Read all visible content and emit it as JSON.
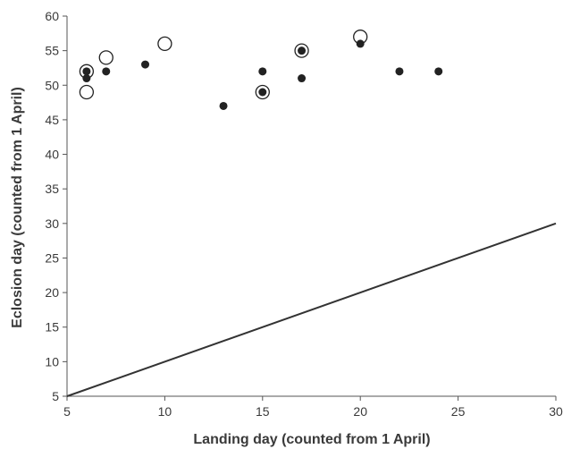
{
  "chart_data": {
    "type": "scatter",
    "xlabel": "Landing day (counted from 1 April)",
    "ylabel": "Eclosion day (counted from 1 April)",
    "xlim": [
      5,
      30
    ],
    "ylim": [
      5,
      60
    ],
    "xticks": [
      5,
      10,
      15,
      20,
      25,
      30
    ],
    "yticks": [
      5,
      10,
      15,
      20,
      25,
      30,
      35,
      40,
      45,
      50,
      55,
      60
    ],
    "grid": false,
    "legend": "none",
    "series": [
      {
        "marker": "filled-circle",
        "color": "#222222",
        "points": [
          {
            "x": 6,
            "y": 52
          },
          {
            "x": 6,
            "y": 51
          },
          {
            "x": 7,
            "y": 52
          },
          {
            "x": 9,
            "y": 53
          },
          {
            "x": 13,
            "y": 47
          },
          {
            "x": 15,
            "y": 52
          },
          {
            "x": 15,
            "y": 49
          },
          {
            "x": 17,
            "y": 55
          },
          {
            "x": 17,
            "y": 51
          },
          {
            "x": 20,
            "y": 56
          },
          {
            "x": 22,
            "y": 52
          },
          {
            "x": 24,
            "y": 52
          }
        ]
      },
      {
        "marker": "open-circle",
        "color": "#222222",
        "points": [
          {
            "x": 6,
            "y": 52
          },
          {
            "x": 6,
            "y": 49
          },
          {
            "x": 7,
            "y": 54
          },
          {
            "x": 10,
            "y": 56
          },
          {
            "x": 15,
            "y": 49
          },
          {
            "x": 17,
            "y": 55
          },
          {
            "x": 20,
            "y": 57
          }
        ]
      }
    ],
    "reference_line": {
      "from": {
        "x": 5,
        "y": 5
      },
      "to": {
        "x": 30,
        "y": 30
      },
      "color": "#333333"
    }
  }
}
